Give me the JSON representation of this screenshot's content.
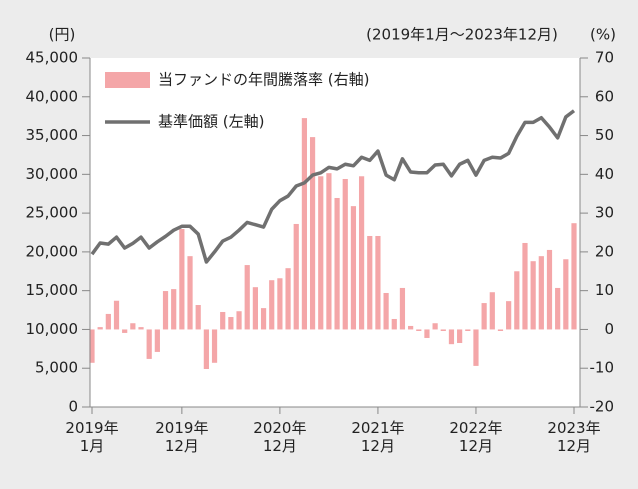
{
  "chart_data": {
    "type": "bar_line",
    "unit_left": "(円)",
    "unit_right": "(%)",
    "subtitle": "(2019年1月〜2023年12月)",
    "legend": "top-left",
    "categories": [
      "2019年\n1月",
      null,
      null,
      null,
      null,
      null,
      null,
      null,
      null,
      null,
      null,
      "2019年\n12月",
      null,
      null,
      null,
      null,
      null,
      null,
      null,
      null,
      null,
      null,
      null,
      "2020年\n12月",
      null,
      null,
      null,
      null,
      null,
      null,
      null,
      null,
      null,
      null,
      null,
      "2021年\n12月",
      null,
      null,
      null,
      null,
      null,
      null,
      null,
      null,
      null,
      null,
      null,
      "2022年\n12月",
      null,
      null,
      null,
      null,
      null,
      null,
      null,
      null,
      null,
      null,
      null,
      "2023年\n12月"
    ],
    "series": [
      {
        "name": "当ファンドの年間騰落率 (右軸)",
        "type": "bar",
        "axis": "y2",
        "color": "#f4a6a8",
        "values": [
          -8.6,
          0.6,
          4.0,
          7.4,
          -0.9,
          1.6,
          0.6,
          -7.6,
          -5.8,
          9.9,
          10.4,
          25.9,
          18.9,
          6.3,
          -10.2,
          -8.6,
          4.5,
          3.2,
          4.7,
          16.6,
          10.9,
          5.5,
          12.7,
          13.2,
          15.8,
          27.2,
          54.5,
          49.6,
          39.5,
          40.3,
          33.9,
          38.8,
          31.8,
          39.5,
          24.1,
          24.1,
          9.4,
          2.7,
          10.7,
          0.9,
          -0.4,
          -2.2,
          1.6,
          -0.4,
          -3.8,
          -3.5,
          -0.4,
          -9.4,
          6.8,
          9.6,
          -0.4,
          7.3,
          15.0,
          22.3,
          17.6,
          18.9,
          20.5,
          10.7,
          18.1,
          27.4
        ]
      },
      {
        "name": "基準価額 (左軸)",
        "type": "line",
        "axis": "y",
        "color": "#707070",
        "values": [
          19700,
          21150,
          21000,
          21900,
          20500,
          21100,
          21900,
          20500,
          21300,
          22000,
          22800,
          23300,
          23300,
          22300,
          18700,
          20000,
          21400,
          21900,
          22800,
          23800,
          23500,
          23200,
          25500,
          26600,
          27200,
          28500,
          28900,
          29900,
          30200,
          30900,
          30700,
          31300,
          31100,
          32200,
          31800,
          33000,
          29900,
          29300,
          32000,
          30300,
          30200,
          30200,
          31200,
          31300,
          29800,
          31300,
          31800,
          29900,
          31800,
          32200,
          32100,
          32700,
          34900,
          36700,
          36700,
          37300,
          36100,
          34700,
          37400,
          38200
        ]
      }
    ],
    "ylim": [
      0,
      45000
    ],
    "yticks": [
      0,
      {
        "value": 5000,
        "label": "5,000"
      },
      {
        "value": 10000,
        "label": "10,000"
      },
      {
        "value": 15000,
        "label": "15,000"
      },
      {
        "value": 20000,
        "label": "20,000"
      },
      {
        "value": 25000,
        "label": "25,000"
      },
      {
        "value": 30000,
        "label": "30,000"
      },
      {
        "value": 35000,
        "label": "35,000"
      },
      {
        "value": 40000,
        "label": "40,000"
      },
      {
        "value": 45000,
        "label": "45,000"
      }
    ],
    "y2lim": [
      -20,
      70
    ],
    "y2ticks": [
      -20,
      -10,
      0,
      10,
      20,
      30,
      40,
      50,
      60,
      70
    ]
  }
}
